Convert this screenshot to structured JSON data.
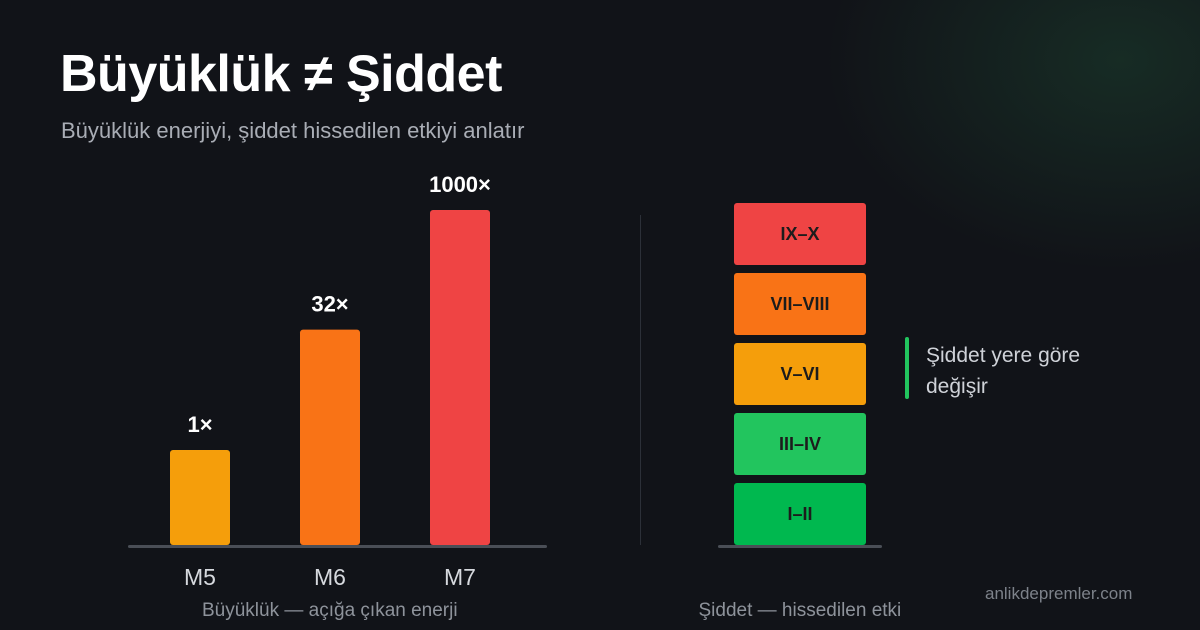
{
  "header": {
    "title": "Büyüklük ≠ Şiddet",
    "subtitle": "Büyüklük enerjiyi, şiddet hissedilen etkiyi anlatır"
  },
  "chart_data": [
    {
      "type": "bar",
      "categories": [
        "M5",
        "M6",
        "M7"
      ],
      "values": [
        1,
        32,
        1000
      ],
      "data_labels": [
        "1×",
        "32×",
        "1000×"
      ],
      "colors": [
        "#f59e0b",
        "#f97316",
        "#ef4444"
      ],
      "xlabel": "Büyüklük — açığa çıkan enerji",
      "title": "",
      "ylabel": ""
    },
    {
      "type": "table",
      "levels": [
        {
          "label": "I–II",
          "color": "#00b84f"
        },
        {
          "label": "III–IV",
          "color": "#22c55e"
        },
        {
          "label": "V–VI",
          "color": "#f59e0b"
        },
        {
          "label": "VII–VIII",
          "color": "#f97316"
        },
        {
          "label": "IX–X",
          "color": "#ef4444"
        }
      ],
      "xlabel": "Şiddet — hissedilen etki",
      "note": "Şiddet yere göre değişir",
      "note_color": "#22c55e"
    }
  ],
  "footer": {
    "watermark": "anlikdepremler.com"
  }
}
